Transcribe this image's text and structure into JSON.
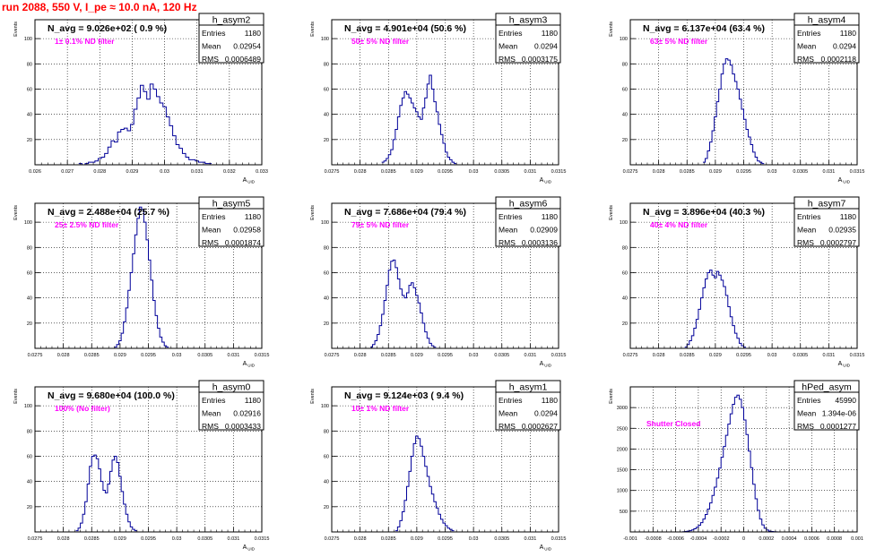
{
  "run_title": "run 2088,   550 V, I_pe ≈ 10.0 nA, 120 Hz",
  "colors": {
    "hist": "#000099",
    "annotation": "#ff00ff",
    "title": "#ff0000",
    "grid": "#000000"
  },
  "stats_labels": {
    "entries": "Entries",
    "mean": "Mean",
    "rms": "RMS"
  },
  "chart_data": [
    {
      "type": "histogram",
      "name": "h_asym2",
      "navg": "N_avg = 9.026e+02 ( 0.9 %)",
      "annotation": "1± 0.1% ND filter",
      "entries": "1180",
      "mean": "0.02954",
      "rms": "0.0006489",
      "ylabel": "Events",
      "xlabel": "A_UID",
      "xlabel_main": "A",
      "xlabel_sub": "UID",
      "grid": true,
      "xlim": [
        0.026,
        0.033
      ],
      "ylim": [
        0,
        115
      ],
      "xticks": [
        "0.026",
        "0.027",
        "0.028",
        "0.029",
        "0.03",
        "0.031",
        "0.032",
        "0.033"
      ],
      "xtick_vals": [
        0.026,
        0.027,
        0.028,
        0.029,
        0.03,
        0.031,
        0.032,
        0.033
      ],
      "yticks": [
        "20",
        "40",
        "60",
        "80",
        "100"
      ],
      "ytick_vals": [
        20,
        40,
        60,
        80,
        100
      ],
      "bin_start": 0.02735,
      "bin_width": 0.0001,
      "counts": [
        1,
        0,
        1,
        2,
        2,
        3,
        5,
        6,
        9,
        14,
        19,
        18,
        26,
        28,
        29,
        27,
        32,
        44,
        53,
        63,
        58,
        52,
        64,
        60,
        54,
        49,
        46,
        38,
        31,
        23,
        16,
        13,
        9,
        6,
        4,
        4,
        3,
        2,
        2,
        1,
        1
      ]
    },
    {
      "type": "histogram",
      "name": "h_asym3",
      "navg": "N_avg = 4.901e+04 (50.6 %)",
      "annotation": "50± 5% ND filter",
      "entries": "1180",
      "mean": "0.0294",
      "rms": "0.0003175",
      "ylabel": "Events",
      "xlabel": "A_UID",
      "xlabel_main": "A",
      "xlabel_sub": "UID",
      "grid": true,
      "xlim": [
        0.0275,
        0.0315
      ],
      "ylim": [
        0,
        115
      ],
      "xticks": [
        "0.0275",
        "0.028",
        "0.0285",
        "0.029",
        "0.0295",
        "0.03",
        "0.0305",
        "0.031",
        "0.0315"
      ],
      "xtick_vals": [
        0.0275,
        0.028,
        0.0285,
        0.029,
        0.0295,
        0.03,
        0.0305,
        0.031,
        0.0315
      ],
      "yticks": [
        "20",
        "40",
        "60",
        "80",
        "100"
      ],
      "ytick_vals": [
        20,
        40,
        60,
        80,
        100
      ],
      "bin_start": 0.02838,
      "bin_width": 4e-05,
      "counts": [
        2,
        3,
        5,
        8,
        12,
        20,
        28,
        38,
        47,
        53,
        58,
        56,
        53,
        49,
        45,
        42,
        38,
        36,
        45,
        53,
        64,
        71,
        60,
        50,
        42,
        32,
        24,
        17,
        10,
        6,
        4,
        2,
        1
      ]
    },
    {
      "type": "histogram",
      "name": "h_asym4",
      "navg": "N_avg = 6.137e+04 (63.4 %)",
      "annotation": "63± 5% ND filter",
      "entries": "1180",
      "mean": "0.0294",
      "rms": "0.0002118",
      "ylabel": "Events",
      "xlabel": "A_UID",
      "xlabel_main": "A",
      "xlabel_sub": "UID",
      "grid": true,
      "xlim": [
        0.0275,
        0.0315
      ],
      "ylim": [
        0,
        115
      ],
      "xticks": [
        "0.0275",
        "0.028",
        "0.0285",
        "0.029",
        "0.0295",
        "0.03",
        "0.0305",
        "0.031",
        "0.0315"
      ],
      "xtick_vals": [
        0.0275,
        0.028,
        0.0285,
        0.029,
        0.0295,
        0.03,
        0.0305,
        0.031,
        0.0315
      ],
      "yticks": [
        "20",
        "40",
        "60",
        "80",
        "100"
      ],
      "ytick_vals": [
        20,
        40,
        60,
        80,
        100
      ],
      "bin_start": 0.02878,
      "bin_width": 4e-05,
      "counts": [
        2,
        5,
        11,
        18,
        27,
        38,
        50,
        60,
        72,
        80,
        84,
        83,
        79,
        72,
        66,
        60,
        52,
        44,
        36,
        28,
        22,
        16,
        10,
        6,
        3,
        2,
        1
      ]
    },
    {
      "type": "histogram",
      "name": "h_asym5",
      "navg": "N_avg = 2.488e+04 (25.7 %)",
      "annotation": "25± 2.5% ND filter",
      "entries": "1180",
      "mean": "0.02958",
      "rms": "0.0001874",
      "ylabel": "Events",
      "xlabel": "A_UID",
      "xlabel_main": "A",
      "xlabel_sub": "UID",
      "grid": true,
      "xlim": [
        0.0275,
        0.0315
      ],
      "ylim": [
        0,
        115
      ],
      "xticks": [
        "0.0275",
        "0.028",
        "0.0285",
        "0.029",
        "0.0295",
        "0.03",
        "0.0305",
        "0.031",
        "0.0315"
      ],
      "xtick_vals": [
        0.0275,
        0.028,
        0.0285,
        0.029,
        0.0295,
        0.03,
        0.0305,
        0.031,
        0.0315
      ],
      "yticks": [
        "20",
        "40",
        "60",
        "80",
        "100"
      ],
      "ytick_vals": [
        20,
        40,
        60,
        80,
        100
      ],
      "bin_start": 0.0289,
      "bin_width": 4e-05,
      "counts": [
        1,
        3,
        6,
        12,
        21,
        32,
        46,
        60,
        75,
        90,
        103,
        112,
        110,
        100,
        86,
        70,
        54,
        38,
        26,
        16,
        9,
        5,
        2,
        1
      ]
    },
    {
      "type": "histogram",
      "name": "h_asym6",
      "navg": "N_avg = 7.686e+04 (79.4 %)",
      "annotation": "79± 5% ND filter",
      "entries": "1180",
      "mean": "0.02909",
      "rms": "0.0003136",
      "ylabel": "Events",
      "xlabel": "A_UID",
      "xlabel_main": "A",
      "xlabel_sub": "UID",
      "grid": true,
      "xlim": [
        0.0275,
        0.0315
      ],
      "ylim": [
        0,
        115
      ],
      "xticks": [
        "0.0275",
        "0.028",
        "0.0285",
        "0.029",
        "0.0295",
        "0.03",
        "0.0305",
        "0.031",
        "0.0315"
      ],
      "xtick_vals": [
        0.0275,
        0.028,
        0.0285,
        0.029,
        0.0295,
        0.03,
        0.0305,
        0.031,
        0.0315
      ],
      "yticks": [
        "20",
        "40",
        "60",
        "80",
        "100"
      ],
      "ytick_vals": [
        20,
        40,
        60,
        80,
        100
      ],
      "bin_start": 0.02818,
      "bin_width": 4e-05,
      "counts": [
        1,
        3,
        6,
        11,
        18,
        27,
        38,
        50,
        62,
        69,
        70,
        64,
        55,
        47,
        42,
        40,
        44,
        50,
        52,
        48,
        42,
        36,
        28,
        20,
        13,
        8,
        4,
        2,
        1
      ]
    },
    {
      "type": "histogram",
      "name": "h_asym7",
      "navg": "N_avg = 3.896e+04 (40.3 %)",
      "annotation": "40± 4% ND filter",
      "entries": "1180",
      "mean": "0.02935",
      "rms": "0.0002797",
      "ylabel": "Events",
      "xlabel": "A_UID",
      "xlabel_main": "A",
      "xlabel_sub": "UID",
      "grid": true,
      "xlim": [
        0.0275,
        0.0315
      ],
      "ylim": [
        0,
        115
      ],
      "xticks": [
        "0.0275",
        "0.028",
        "0.0285",
        "0.029",
        "0.0295",
        "0.03",
        "0.0305",
        "0.031",
        "0.0315"
      ],
      "xtick_vals": [
        0.0275,
        0.028,
        0.0285,
        0.029,
        0.0295,
        0.03,
        0.0305,
        0.031,
        0.0315
      ],
      "yticks": [
        "20",
        "40",
        "60",
        "80",
        "100"
      ],
      "ytick_vals": [
        20,
        40,
        60,
        80,
        100
      ],
      "bin_start": 0.02846,
      "bin_width": 4e-05,
      "counts": [
        1,
        3,
        6,
        10,
        16,
        23,
        31,
        40,
        48,
        55,
        60,
        62,
        58,
        56,
        61,
        58,
        54,
        49,
        42,
        33,
        25,
        18,
        12,
        8,
        4,
        2,
        1
      ]
    },
    {
      "type": "histogram",
      "name": "h_asym0",
      "navg": "N_avg = 9.680e+04 (100.0 %)",
      "annotation": "100% (No filter)",
      "entries": "1180",
      "mean": "0.02916",
      "rms": "0.0003433",
      "ylabel": "Events",
      "xlabel": "A_UID",
      "xlabel_main": "A",
      "xlabel_sub": "UID",
      "grid": true,
      "xlim": [
        0.0275,
        0.0315
      ],
      "ylim": [
        0,
        115
      ],
      "xticks": [
        "0.0275",
        "0.028",
        "0.0285",
        "0.029",
        "0.0295",
        "0.03",
        "0.0305",
        "0.031",
        "0.0315"
      ],
      "xtick_vals": [
        0.0275,
        0.028,
        0.0285,
        0.029,
        0.0295,
        0.03,
        0.0305,
        0.031,
        0.0315
      ],
      "yticks": [
        "20",
        "40",
        "60",
        "80",
        "100"
      ],
      "ytick_vals": [
        20,
        40,
        60,
        80,
        100
      ],
      "bin_start": 0.02822,
      "bin_width": 4e-05,
      "counts": [
        1,
        3,
        7,
        14,
        24,
        38,
        52,
        60,
        61,
        58,
        50,
        40,
        33,
        31,
        38,
        48,
        57,
        60,
        55,
        44,
        32,
        22,
        14,
        8,
        4,
        2,
        1
      ]
    },
    {
      "type": "histogram",
      "name": "h_asym1",
      "navg": "N_avg = 9.124e+03 ( 9.4 %)",
      "annotation": "10± 1% ND filter",
      "entries": "1180",
      "mean": "0.0294",
      "rms": "0.0002627",
      "ylabel": "Events",
      "xlabel": "A_UID",
      "xlabel_main": "A",
      "xlabel_sub": "UID",
      "grid": true,
      "xlim": [
        0.0275,
        0.0315
      ],
      "ylim": [
        0,
        115
      ],
      "xticks": [
        "0.0275",
        "0.028",
        "0.0285",
        "0.029",
        "0.0295",
        "0.03",
        "0.0305",
        "0.031",
        "0.0315"
      ],
      "xtick_vals": [
        0.0275,
        0.028,
        0.0285,
        0.029,
        0.0295,
        0.03,
        0.0305,
        0.031,
        0.0315
      ],
      "yticks": [
        "20",
        "40",
        "60",
        "80",
        "100"
      ],
      "ytick_vals": [
        20,
        40,
        60,
        80,
        100
      ],
      "bin_start": 0.02862,
      "bin_width": 4e-05,
      "counts": [
        1,
        4,
        9,
        16,
        25,
        36,
        48,
        60,
        70,
        76,
        74,
        68,
        60,
        52,
        44,
        36,
        30,
        24,
        19,
        14,
        10,
        7,
        5,
        3,
        2,
        1
      ]
    },
    {
      "type": "histogram",
      "name": "hPed_asym",
      "navg": "",
      "annotation": "Shutter Closed",
      "entries": "45990",
      "mean": "1.394e-06",
      "rms": "0.0001277",
      "ylabel": "Events",
      "xlabel": "",
      "xlabel_main": "",
      "xlabel_sub": "",
      "grid": true,
      "xlim": [
        -0.001,
        0.001
      ],
      "ylim": [
        0,
        3500
      ],
      "xticks": [
        "-0.001",
        "-0.0008",
        "-0.0006",
        "-0.0004",
        "-0.0002",
        "0",
        "0.0002",
        "0.0004",
        "0.0006",
        "0.0008",
        "0.001"
      ],
      "xtick_vals": [
        -0.001,
        -0.0008,
        -0.0006,
        -0.0004,
        -0.0002,
        0,
        0.0002,
        0.0004,
        0.0006,
        0.0008,
        0.001
      ],
      "yticks": [
        "500",
        "1000",
        "1500",
        "2000",
        "2500",
        "3000"
      ],
      "ytick_vals": [
        500,
        1000,
        1500,
        2000,
        2500,
        3000
      ],
      "bin_start": -0.00054,
      "bin_width": 2e-05,
      "counts": [
        5,
        10,
        18,
        30,
        48,
        75,
        110,
        160,
        225,
        310,
        420,
        550,
        700,
        880,
        1080,
        1300,
        1540,
        1800,
        2060,
        2330,
        2600,
        2850,
        3080,
        3250,
        3300,
        3200,
        3000,
        2700,
        2350,
        1950,
        1550,
        1150,
        800,
        520,
        310,
        170,
        90,
        45,
        20,
        10,
        5,
        2
      ]
    }
  ]
}
